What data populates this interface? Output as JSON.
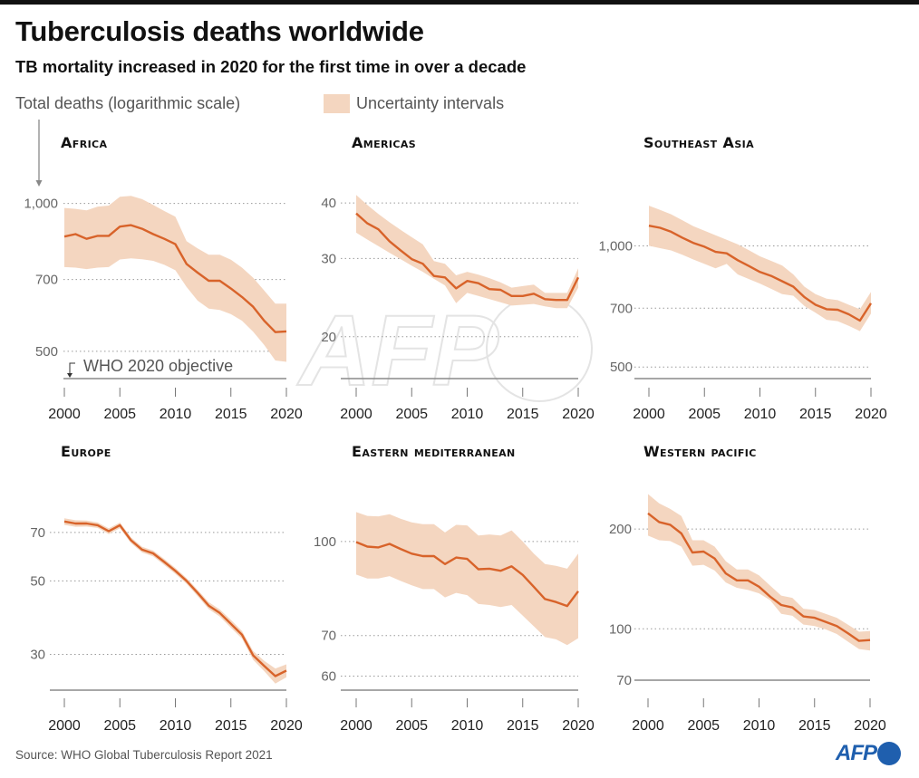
{
  "header": {
    "title": "Tuberculosis deaths worldwide",
    "subtitle": "TB mortality increased in 2020 for the first time in over a decade",
    "y_axis_label": "Total deaths (logarithmic scale)",
    "legend_label": "Uncertainty intervals"
  },
  "footer": {
    "source": "Source: WHO Global Tuberculosis Report 2021",
    "logo": "AFP"
  },
  "watermark": "AFP",
  "colors": {
    "line": "#d8632a",
    "band": "#f4d6c0",
    "grid": "#9a9a9a",
    "baseline": "#8a8a8a",
    "logo": "#1f5fae"
  },
  "chart_data": [
    {
      "type": "line",
      "title": "Africa",
      "yscale": "log",
      "ylim": [
        440,
        1110
      ],
      "grid": true,
      "xticks": [
        "2000",
        "2005",
        "2010",
        "2015",
        "2020"
      ],
      "yticks": [
        {
          "value": 1000,
          "label": "1,000"
        },
        {
          "value": 700,
          "label": "700"
        },
        {
          "value": 500,
          "label": "500"
        }
      ],
      "baseline_label": "WHO 2020 objective",
      "x": [
        2000,
        2001,
        2002,
        2003,
        2004,
        2005,
        2006,
        2007,
        2008,
        2009,
        2010,
        2011,
        2012,
        2013,
        2014,
        2015,
        2016,
        2017,
        2018,
        2019,
        2020
      ],
      "values": [
        856,
        866,
        847,
        859,
        859,
        897,
        903,
        888,
        866,
        847,
        826,
        753,
        723,
        696,
        696,
        671,
        645,
        616,
        577,
        547,
        549
      ],
      "upper": [
        979,
        975,
        968,
        985,
        990,
        1032,
        1036,
        1020,
        993,
        965,
        940,
        838,
        810,
        786,
        786,
        768,
        740,
        706,
        665,
        625,
        625
      ],
      "lower": [
        742,
        740,
        735,
        740,
        742,
        769,
        773,
        770,
        764,
        750,
        731,
        676,
        634,
        611,
        607,
        595,
        577,
        548,
        515,
        479,
        476
      ]
    },
    {
      "type": "line",
      "title": "Americas",
      "yscale": "log",
      "ylim": [
        16.1,
        44.8
      ],
      "grid": true,
      "xticks": [
        "2000",
        "2005",
        "2010",
        "2015",
        "2020"
      ],
      "yticks": [
        {
          "value": 40,
          "label": "40"
        },
        {
          "value": 30,
          "label": "30"
        },
        {
          "value": 20,
          "label": "20"
        }
      ],
      "x": [
        2000,
        2001,
        2002,
        2003,
        2004,
        2005,
        2006,
        2007,
        2008,
        2009,
        2010,
        2011,
        2012,
        2013,
        2014,
        2015,
        2016,
        2017,
        2018,
        2019,
        2020
      ],
      "values": [
        37.9,
        36.0,
        34.9,
        32.8,
        31.3,
        29.9,
        29.2,
        27.4,
        27.2,
        25.7,
        26.7,
        26.4,
        25.6,
        25.5,
        24.7,
        24.7,
        25.0,
        24.3,
        24.2,
        24.2,
        27.2
      ],
      "upper": [
        41.7,
        39.6,
        37.8,
        36.2,
        34.8,
        33.5,
        32.3,
        29.6,
        29.2,
        27.5,
        28.0,
        27.6,
        27.1,
        26.5,
        25.8,
        26.0,
        26.2,
        25.1,
        25.1,
        25.1,
        28.5
      ],
      "lower": [
        34.3,
        33.1,
        32.0,
        30.9,
        29.9,
        28.9,
        28.0,
        27.0,
        26.1,
        23.8,
        25.1,
        24.7,
        24.3,
        23.9,
        23.5,
        23.6,
        23.7,
        23.4,
        23.2,
        23.2,
        25.8
      ]
    },
    {
      "type": "line",
      "title": "Southeast Asia",
      "yscale": "log",
      "ylim": [
        468,
        1448
      ],
      "grid": true,
      "xticks": [
        "2000",
        "2005",
        "2010",
        "2015",
        "2020"
      ],
      "yticks": [
        {
          "value": 1000,
          "label": "1,000"
        },
        {
          "value": 700,
          "label": "700"
        },
        {
          "value": 500,
          "label": "500"
        }
      ],
      "x": [
        2000,
        2001,
        2002,
        2003,
        2004,
        2005,
        2006,
        2007,
        2008,
        2009,
        2010,
        2011,
        2012,
        2013,
        2014,
        2015,
        2016,
        2017,
        2018,
        2019,
        2020
      ],
      "values": [
        1122,
        1109,
        1084,
        1048,
        1017,
        995,
        966,
        958,
        921,
        891,
        861,
        842,
        817,
        792,
        746,
        714,
        696,
        694,
        676,
        652,
        720
      ],
      "upper": [
        1258,
        1228,
        1198,
        1158,
        1119,
        1090,
        1062,
        1035,
        1009,
        975,
        942,
        918,
        894,
        849,
        792,
        759,
        739,
        733,
        714,
        696,
        768
      ],
      "lower": [
        1000,
        987,
        974,
        950,
        925,
        902,
        879,
        902,
        849,
        827,
        806,
        782,
        759,
        752,
        709,
        682,
        655,
        650,
        633,
        614,
        679
      ]
    },
    {
      "type": "line",
      "title": "Europe",
      "yscale": "log",
      "ylim": [
        23.4,
        94.6
      ],
      "grid": true,
      "xticks": [
        "2000",
        "2005",
        "2010",
        "2015",
        "2020"
      ],
      "yticks": [
        {
          "value": 70,
          "label": "70"
        },
        {
          "value": 50,
          "label": "50"
        },
        {
          "value": 30,
          "label": "30"
        }
      ],
      "x": [
        2000,
        2001,
        2002,
        2003,
        2004,
        2005,
        2006,
        2007,
        2008,
        2009,
        2010,
        2011,
        2012,
        2013,
        2014,
        2015,
        2016,
        2017,
        2018,
        2019,
        2020
      ],
      "values": [
        75.5,
        74.5,
        74.5,
        73.6,
        70.6,
        73.6,
        66.3,
        62.1,
        60.5,
        57.0,
        53.6,
        50.0,
        46.0,
        42.1,
        40.0,
        37.1,
        34.4,
        29.8,
        27.7,
        25.8,
        26.8
      ],
      "upper": [
        77.2,
        76.2,
        76.0,
        75.0,
        72.0,
        75.0,
        67.6,
        63.3,
        61.7,
        58.2,
        54.7,
        51.0,
        47.0,
        43.1,
        41.0,
        38.1,
        35.3,
        30.7,
        28.7,
        27.2,
        28.0
      ],
      "lower": [
        73.8,
        72.8,
        72.9,
        72.2,
        69.2,
        72.1,
        65.0,
        60.9,
        59.3,
        55.8,
        52.5,
        49.0,
        45.0,
        41.1,
        39.0,
        36.1,
        33.5,
        28.9,
        26.7,
        24.5,
        25.6
      ]
    },
    {
      "type": "line",
      "title": "Eastern mediterranean",
      "yscale": "log",
      "ylim": [
        56.9,
        122
      ],
      "grid": true,
      "xticks": [
        "2000",
        "2005",
        "2010",
        "2015",
        "2020"
      ],
      "yticks": [
        {
          "value": 100,
          "label": "100"
        },
        {
          "value": 70,
          "label": "70"
        },
        {
          "value": 60,
          "label": "60"
        }
      ],
      "x": [
        2000,
        2001,
        2002,
        2003,
        2004,
        2005,
        2006,
        2007,
        2008,
        2009,
        2010,
        2011,
        2012,
        2013,
        2014,
        2015,
        2016,
        2017,
        2018,
        2019,
        2020
      ],
      "values": [
        99.8,
        98.1,
        97.8,
        99.1,
        97.2,
        95.5,
        94.6,
        94.6,
        91.8,
        94.1,
        93.6,
        90.0,
        90.2,
        89.5,
        91.0,
        88.1,
        84.2,
        80.4,
        79.5,
        78.3,
        82.8
      ],
      "upper": [
        111.8,
        110.2,
        110.0,
        110.9,
        109.0,
        107.5,
        106.8,
        106.8,
        103.5,
        106.5,
        106.3,
        102.3,
        102.7,
        102.3,
        104.3,
        100.0,
        95.5,
        91.8,
        91.2,
        90.2,
        95.5
      ],
      "lower": [
        88.2,
        86.9,
        86.9,
        87.7,
        86.1,
        84.7,
        83.5,
        83.5,
        80.9,
        82.3,
        81.6,
        78.9,
        78.6,
        78.0,
        78.6,
        75.5,
        72.5,
        69.6,
        69.0,
        67.5,
        69.3
      ]
    },
    {
      "type": "line",
      "title": "Western pacific",
      "yscale": "log",
      "ylim": [
        70,
        264
      ],
      "grid": true,
      "xticks": [
        "2000",
        "2005",
        "2010",
        "2015",
        "2020"
      ],
      "yticks": [
        {
          "value": 200,
          "label": "200"
        },
        {
          "value": 100,
          "label": "100"
        },
        {
          "value": 70,
          "label": "70"
        }
      ],
      "x": [
        2000,
        2001,
        2002,
        2003,
        2004,
        2005,
        2006,
        2007,
        2008,
        2009,
        2010,
        2011,
        2012,
        2013,
        2014,
        2015,
        2016,
        2017,
        2018,
        2019,
        2020
      ],
      "values": [
        223,
        210,
        206,
        194,
        170,
        171,
        163,
        147,
        140,
        140,
        134,
        125,
        118,
        116,
        109,
        108,
        105,
        102,
        97,
        92,
        92.5
      ],
      "upper": [
        255,
        239,
        230,
        219,
        185,
        185,
        177,
        160,
        151,
        151,
        145,
        135,
        126,
        124,
        115,
        114,
        111,
        108,
        103,
        98,
        98.5
      ],
      "lower": [
        191,
        185,
        184,
        177,
        155,
        156,
        150,
        138,
        133,
        131,
        128,
        122,
        111,
        109.5,
        103,
        102,
        99.6,
        96.5,
        91.5,
        86.9,
        86
      ]
    }
  ]
}
